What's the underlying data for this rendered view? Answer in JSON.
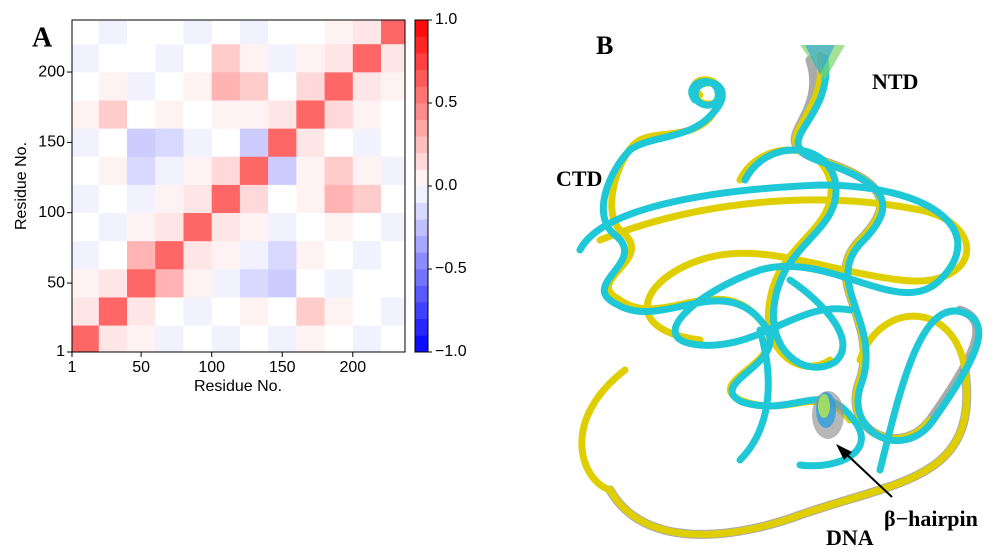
{
  "chart_data": {
    "type": "heatmap",
    "panel_label": "A",
    "x_label": "Residue No.",
    "y_label": "Residue No.",
    "xbins": [
      1,
      20,
      40,
      60,
      80,
      100,
      120,
      140,
      160,
      180,
      200,
      220,
      237
    ],
    "ybins": [
      1,
      20,
      40,
      60,
      80,
      100,
      120,
      140,
      160,
      180,
      200,
      220,
      237
    ],
    "z": [
      [
        0.6,
        0.1,
        0.05,
        -0.05,
        0.0,
        -0.05,
        0.0,
        -0.05,
        0.05,
        0.0,
        -0.05,
        0.0
      ],
      [
        0.1,
        0.6,
        0.1,
        0.0,
        -0.05,
        0.0,
        0.05,
        0.0,
        0.2,
        0.05,
        0.0,
        -0.05
      ],
      [
        0.05,
        0.1,
        0.6,
        0.3,
        0.05,
        -0.05,
        -0.15,
        -0.2,
        0.0,
        -0.05,
        0.0,
        0.0
      ],
      [
        -0.05,
        0.0,
        0.3,
        0.6,
        0.1,
        0.05,
        -0.05,
        -0.15,
        0.05,
        0.0,
        -0.05,
        0.0
      ],
      [
        0.0,
        -0.05,
        0.05,
        0.1,
        0.6,
        0.1,
        0.05,
        -0.05,
        0.0,
        0.05,
        0.0,
        -0.05
      ],
      [
        -0.05,
        0.0,
        -0.05,
        0.05,
        0.1,
        0.6,
        0.15,
        0.0,
        0.05,
        0.3,
        0.2,
        0.0
      ],
      [
        0.0,
        0.05,
        -0.15,
        -0.05,
        0.05,
        0.15,
        0.6,
        -0.2,
        0.05,
        0.2,
        0.05,
        -0.05
      ],
      [
        -0.05,
        0.0,
        -0.2,
        -0.15,
        -0.05,
        0.0,
        -0.2,
        0.6,
        0.1,
        0.0,
        -0.05,
        0.0
      ],
      [
        0.05,
        0.2,
        0.0,
        0.05,
        0.0,
        0.05,
        0.05,
        0.1,
        0.6,
        0.15,
        0.05,
        0.0
      ],
      [
        0.0,
        0.05,
        -0.05,
        0.0,
        0.05,
        0.3,
        0.2,
        0.0,
        0.15,
        0.6,
        0.1,
        0.05
      ],
      [
        -0.05,
        0.0,
        0.0,
        -0.05,
        0.0,
        0.2,
        0.05,
        -0.05,
        0.05,
        0.1,
        0.6,
        0.1
      ],
      [
        0.0,
        -0.05,
        0.0,
        0.0,
        -0.05,
        0.0,
        -0.05,
        0.0,
        0.0,
        0.05,
        0.1,
        0.6
      ]
    ],
    "xlim": [
      1,
      237
    ],
    "ylim": [
      1,
      237
    ],
    "xticks": [
      1,
      50,
      100,
      150,
      200
    ],
    "yticks": [
      1,
      50,
      100,
      150,
      200
    ],
    "zlim": [
      -1,
      1
    ],
    "zticks": [
      {
        "value": -1,
        "label": "−1.0"
      },
      {
        "value": -0.5,
        "label": "−0.5"
      },
      {
        "value": 0,
        "label": "0.0"
      },
      {
        "value": 0.5,
        "label": "0.5"
      },
      {
        "value": 1,
        "label": "1.0"
      }
    ],
    "colors": {
      "negative": "#0000ff",
      "zero": "#ffffff",
      "positive": "#ff0000"
    }
  },
  "structure_panel": {
    "panel_label": "B",
    "labels": {
      "ntd": "NTD",
      "ctd": "CTD",
      "dna": "DNA",
      "hairpin": "β−hairpin"
    }
  }
}
